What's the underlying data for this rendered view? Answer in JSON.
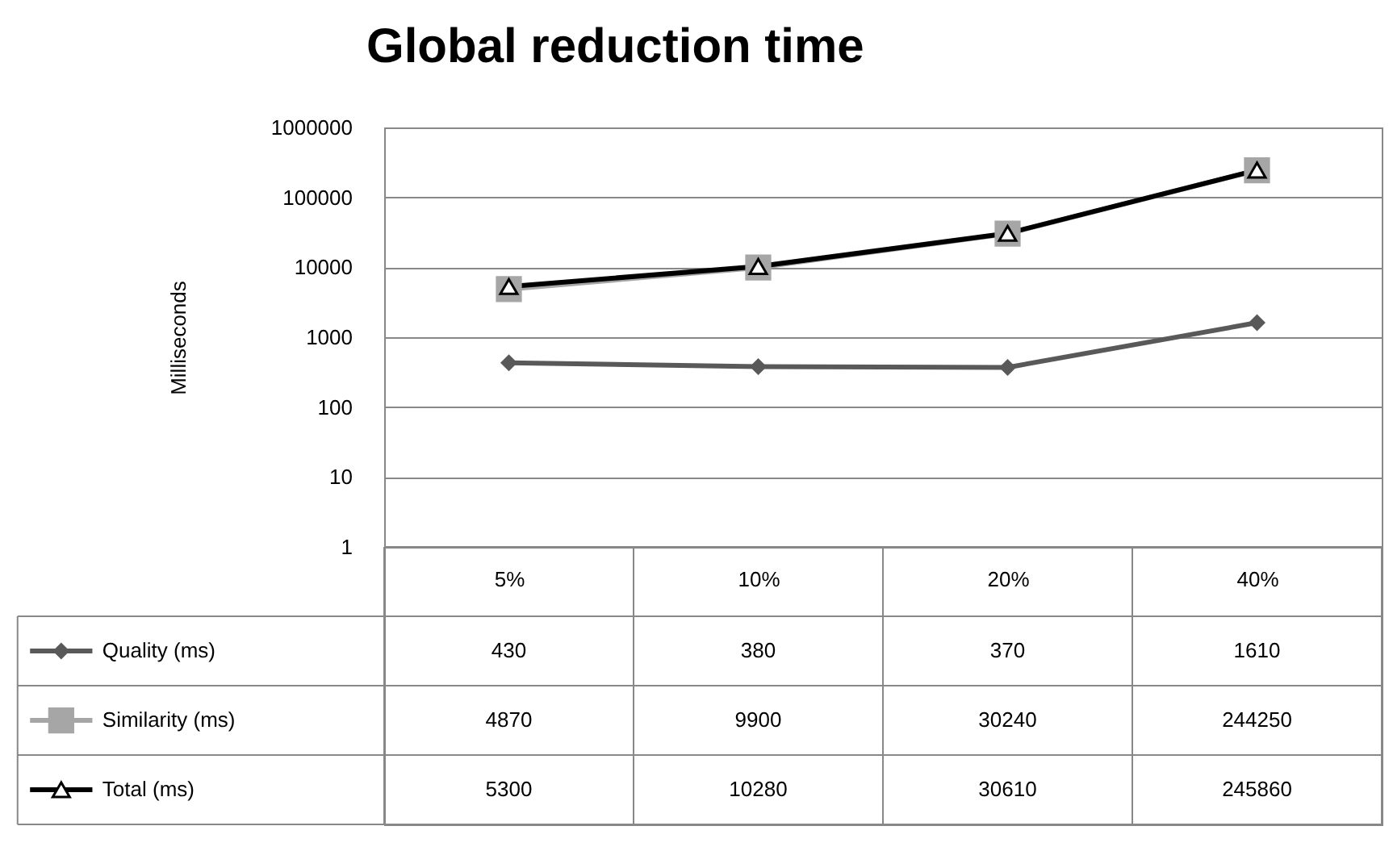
{
  "chart_data": {
    "type": "line",
    "title": "Global reduction time",
    "ylabel": "Milliseconds",
    "categories": [
      "5%",
      "10%",
      "20%",
      "40%"
    ],
    "series": [
      {
        "name": "Quality (ms)",
        "color": "#595959",
        "marker": "diamond",
        "values": [
          430,
          380,
          370,
          1610
        ]
      },
      {
        "name": "Similarity (ms)",
        "color": "#a6a6a6",
        "marker": "square",
        "values": [
          4870,
          9900,
          30240,
          244250
        ]
      },
      {
        "name": "Total (ms)",
        "color": "#000000",
        "marker": "triangle",
        "values": [
          5300,
          10280,
          30610,
          245860
        ]
      }
    ],
    "log": "y",
    "ylim": [
      1,
      1000000
    ],
    "yticks": [
      1,
      10,
      100,
      1000,
      10000,
      100000,
      1000000
    ],
    "grid": "y",
    "legend": "bottom",
    "data_labels": true
  }
}
